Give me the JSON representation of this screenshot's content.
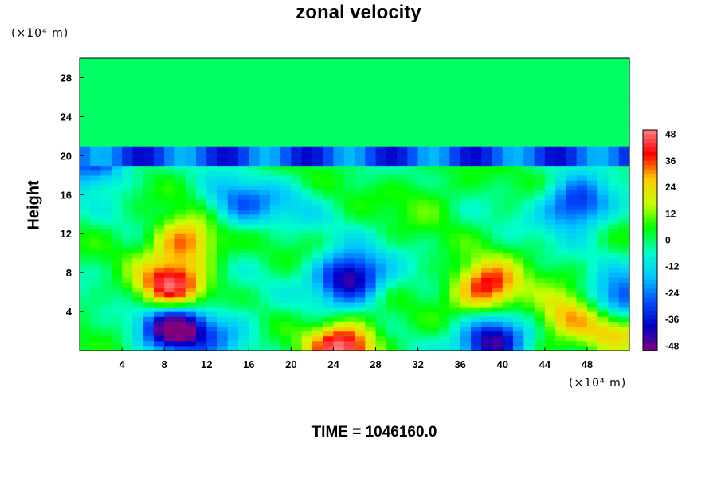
{
  "chart_data": {
    "type": "heatmap",
    "title": "zonal velocity",
    "ylabel": "Height",
    "xlabel": "",
    "x_unit": "(×10⁴ m)",
    "y_unit": "(×10⁴ m)",
    "xlim": [
      0,
      52
    ],
    "ylim": [
      0,
      30
    ],
    "x_ticks": [
      "4",
      "8",
      "12",
      "16",
      "20",
      "24",
      "28",
      "32",
      "36",
      "40",
      "44",
      "48"
    ],
    "y_ticks": [
      "4",
      "8",
      "12",
      "16",
      "20",
      "24",
      "28"
    ],
    "colorbar": {
      "range": [
        -50,
        50
      ],
      "ticks": [
        "48",
        "36",
        "24",
        "12",
        "0",
        "-12",
        "-24",
        "-36",
        "-48"
      ],
      "colors": [
        "#800080",
        "#0000c8",
        "#0050ff",
        "#00c8ff",
        "#00ffc8",
        "#00ff00",
        "#c8ff00",
        "#ffc800",
        "#ff0000",
        "#ff8080"
      ]
    },
    "features": [
      {
        "x": 8.5,
        "y": 6.5,
        "value": 40
      },
      {
        "x": 9.0,
        "y": 2.3,
        "value": -50
      },
      {
        "x": 25.5,
        "y": 7.5,
        "value": -45
      },
      {
        "x": 38.5,
        "y": 6.5,
        "value": 40
      },
      {
        "x": 39.0,
        "y": 1.0,
        "value": -45
      },
      {
        "x": 25.0,
        "y": 0.5,
        "value": 44
      },
      {
        "x": 50.5,
        "y": 2.0,
        "value": 28
      },
      {
        "x": 51.0,
        "y": 5.0,
        "value": -34
      },
      {
        "x": 47.0,
        "y": 15.0,
        "value": -34
      },
      {
        "x": 15.0,
        "y": 15.0,
        "value": -22
      },
      {
        "x": 1.5,
        "y": 19.5,
        "value": -32
      },
      {
        "x": 10.0,
        "y": 11.2,
        "value": 32
      },
      {
        "x": 14.0,
        "y": 2.0,
        "value": -14
      },
      {
        "x": 46.0,
        "y": 3.5,
        "value": 26
      },
      {
        "x": 20.0,
        "y": 15.0,
        "value": -8
      },
      {
        "x": 33.0,
        "y": 16.0,
        "value": 8
      }
    ],
    "time_label": "TIME = 1046160.0"
  }
}
